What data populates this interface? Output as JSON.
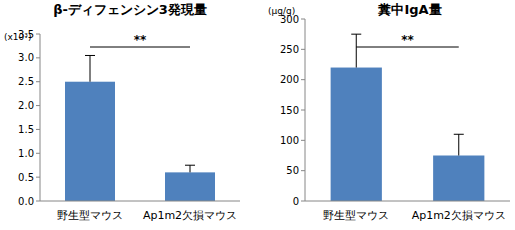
{
  "chart_data": [
    {
      "type": "bar",
      "title": "β-ディフェンシン3発現量",
      "y_label": "(x10³)",
      "categories": [
        "野生型マウス",
        "Ap1m2欠損マウス"
      ],
      "values": [
        2.5,
        0.6
      ],
      "errors": [
        0.55,
        0.15
      ],
      "color": "#4f81bd",
      "ylim": [
        0,
        3.5
      ],
      "yticks": [
        {
          "value": 0,
          "label": "0.0"
        },
        {
          "value": 0.5,
          "label": "0.5"
        },
        {
          "value": 1,
          "label": "1.0"
        },
        {
          "value": 1.5,
          "label": "1.5"
        },
        {
          "value": 2,
          "label": "2.0"
        },
        {
          "value": 2.5,
          "label": "2.5"
        },
        {
          "value": 3,
          "label": "3.0"
        },
        {
          "value": 3.5,
          "label": "3.5"
        }
      ],
      "grid": false,
      "annotation": "**"
    },
    {
      "type": "bar",
      "title": "糞中IgA量",
      "y_label": "(μg/g)",
      "categories": [
        "野生型マウス",
        "Ap1m2欠損マウス"
      ],
      "values": [
        220,
        75
      ],
      "errors": [
        55,
        35
      ],
      "color": "#4f81bd",
      "ylim": [
        0,
        300
      ],
      "yticks": [
        0,
        50,
        100,
        150,
        200,
        250,
        300
      ],
      "grid": false,
      "annotation": "**"
    }
  ]
}
